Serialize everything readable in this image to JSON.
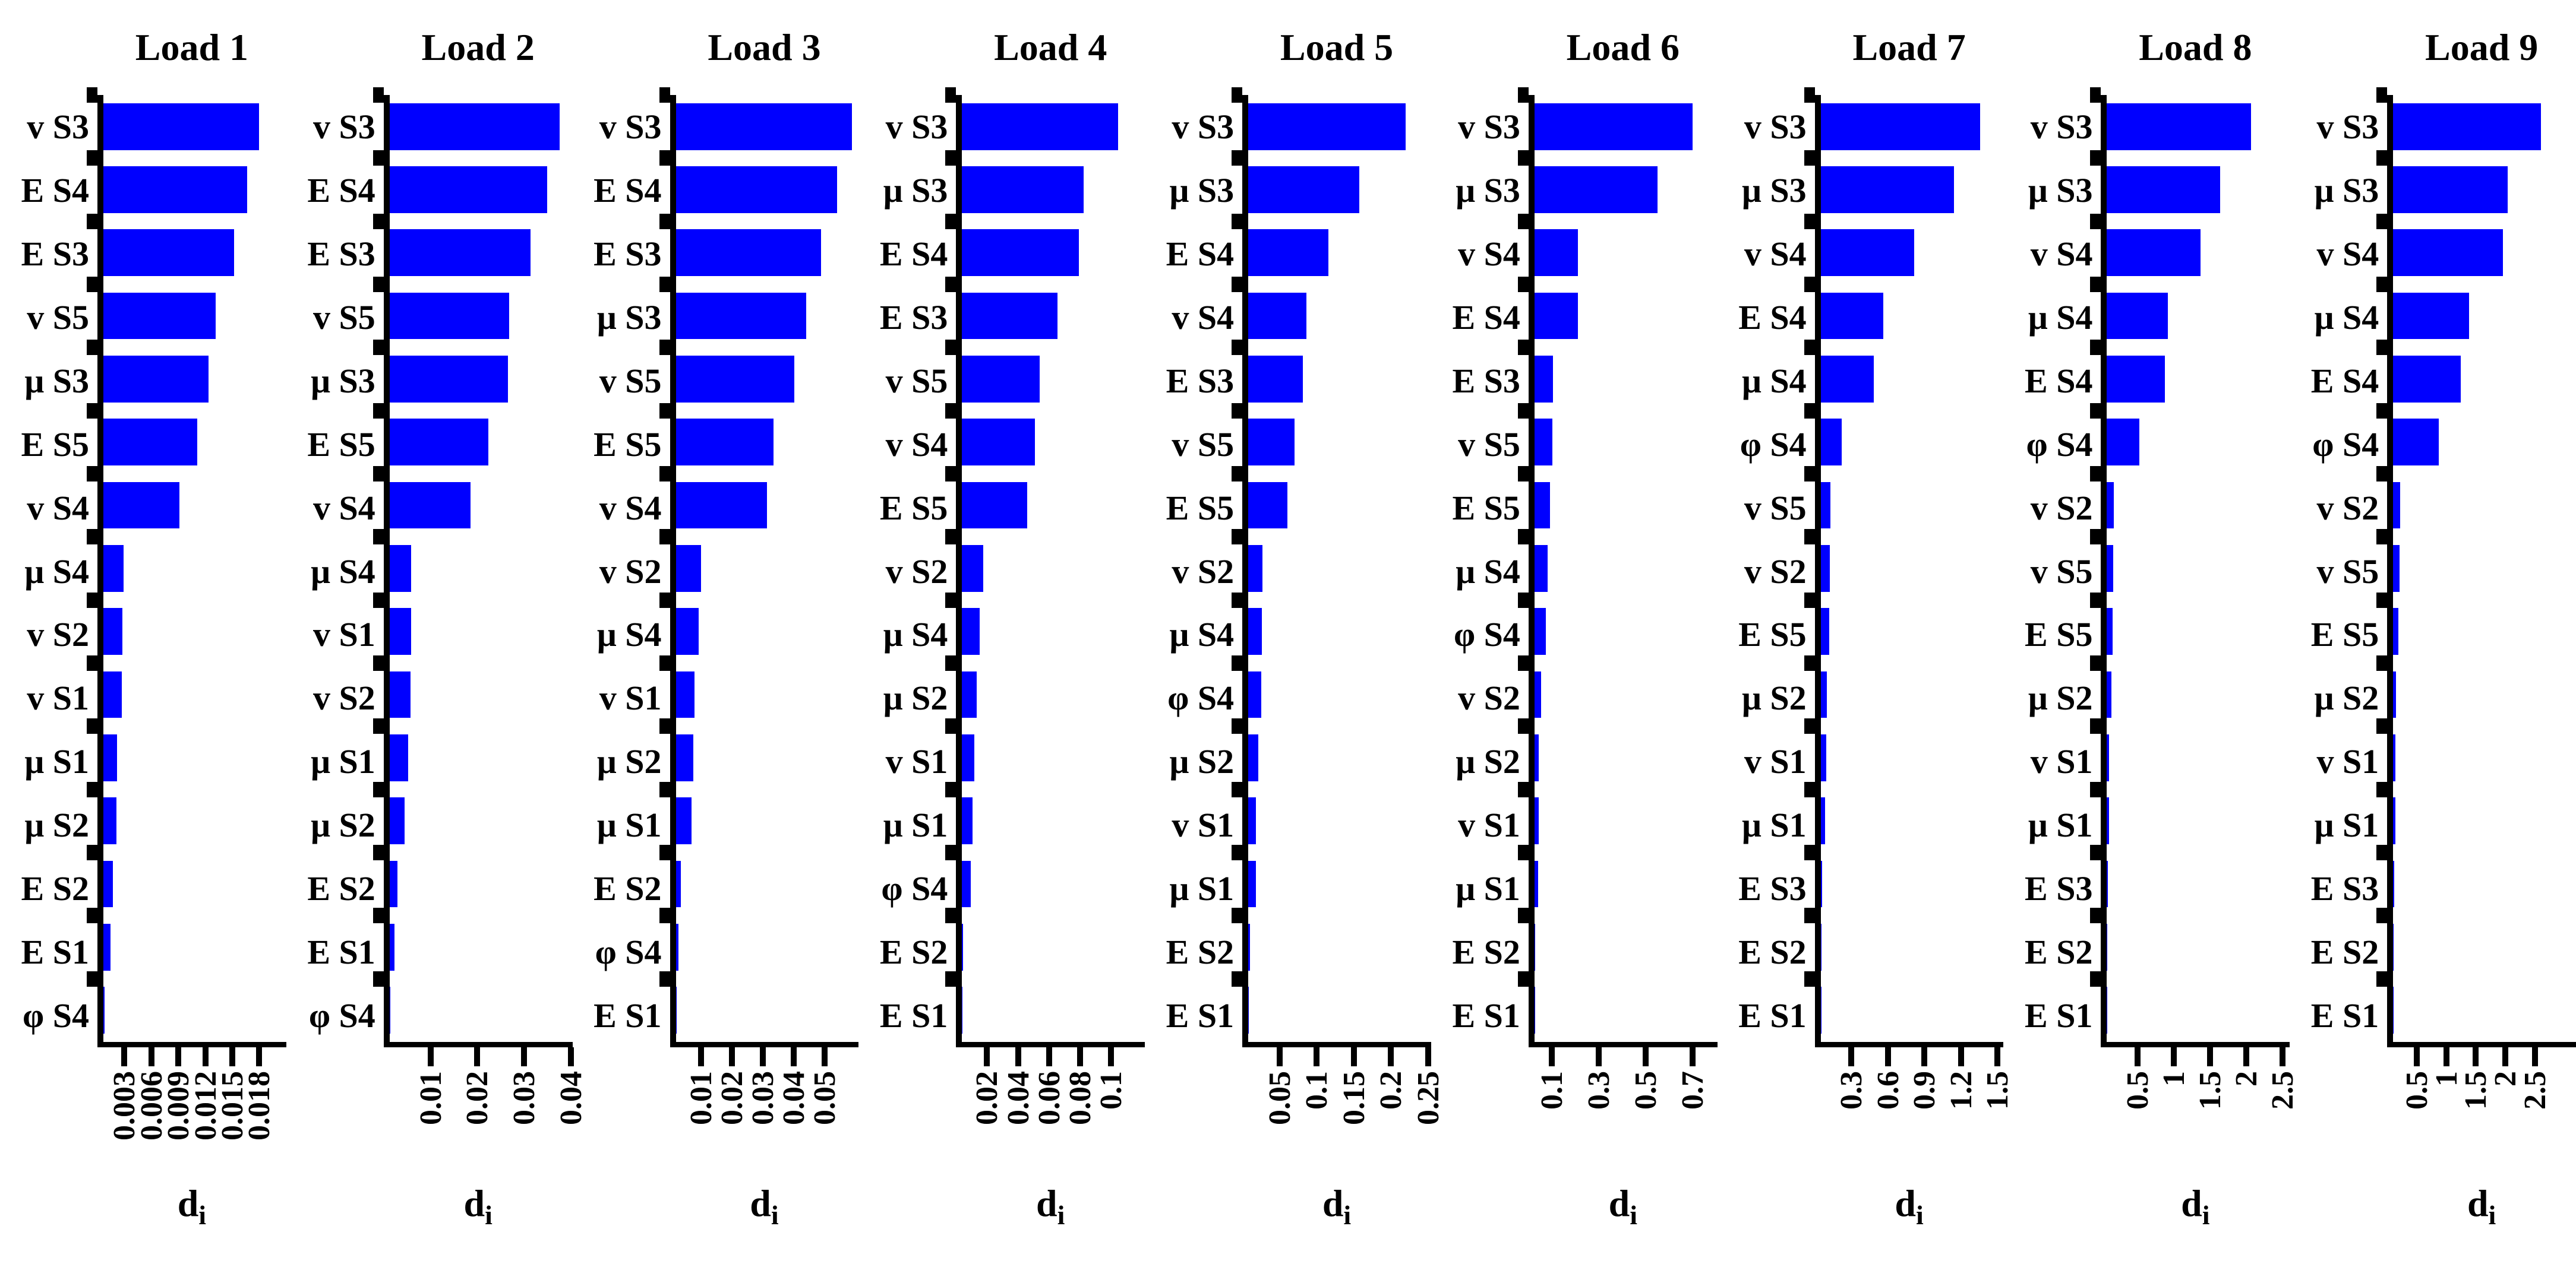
{
  "figure": {
    "bar_color": "#0000ff",
    "xlabel_base": "d",
    "xlabel_sub": "i"
  },
  "chart_data": [
    {
      "type": "bar",
      "orientation": "horizontal",
      "title": "Load 1",
      "xlabel": "d_i",
      "grid": false,
      "xlim": [
        0,
        0.021
      ],
      "xticks": [
        0.003,
        0.006,
        0.009,
        0.012,
        0.015,
        0.018
      ],
      "xtick_labels": [
        "0.003",
        "0.006",
        "0.009",
        "0.012",
        "0.015",
        "0.018"
      ],
      "categories": [
        "v S3",
        "E S4",
        "E S3",
        "v S5",
        "μ S3",
        "E S5",
        "v S4",
        "μ S4",
        "v S2",
        "v S1",
        "μ S1",
        "μ S2",
        "E S2",
        "E S1",
        "φ S4"
      ],
      "values": [
        0.0179,
        0.0165,
        0.015,
        0.0129,
        0.0121,
        0.0108,
        0.0087,
        0.0023,
        0.0022,
        0.0021,
        0.0016,
        0.0015,
        0.0011,
        0.0008,
        0.00015
      ]
    },
    {
      "type": "bar",
      "orientation": "horizontal",
      "title": "Load 2",
      "xlabel": "d_i",
      "grid": false,
      "xlim": [
        0,
        0.0403
      ],
      "xticks": [
        0.01,
        0.02,
        0.03,
        0.04
      ],
      "xtick_labels": [
        "0.01",
        "0.02",
        "0.03",
        "0.04"
      ],
      "categories": [
        "v S3",
        "E S4",
        "E S3",
        "v S5",
        "μ S3",
        "E S5",
        "v S4",
        "μ S4",
        "v S1",
        "v S2",
        "μ S1",
        "μ S2",
        "E S2",
        "E S1",
        "φ S4"
      ],
      "values": [
        0.0375,
        0.0347,
        0.0311,
        0.0264,
        0.0261,
        0.0218,
        0.0179,
        0.0047,
        0.0047,
        0.0046,
        0.0041,
        0.0033,
        0.0017,
        0.0011,
        0.0002
      ]
    },
    {
      "type": "bar",
      "orientation": "horizontal",
      "title": "Load 3",
      "xlabel": "d_i",
      "grid": false,
      "xlim": [
        0,
        0.061
      ],
      "xticks": [
        0.01,
        0.02,
        0.03,
        0.04,
        0.05
      ],
      "xtick_labels": [
        "0.01",
        "0.02",
        "0.03",
        "0.04",
        "0.05"
      ],
      "categories": [
        "v S3",
        "E S4",
        "E S3",
        "μ S3",
        "v S5",
        "E S5",
        "v S4",
        "v S2",
        "μ S4",
        "v S1",
        "μ S2",
        "μ S1",
        "E S2",
        "φ S4",
        "E S1"
      ],
      "values": [
        0.0588,
        0.0538,
        0.0484,
        0.0434,
        0.0396,
        0.0326,
        0.0304,
        0.0084,
        0.0076,
        0.0062,
        0.0058,
        0.0052,
        0.0016,
        0.0008,
        0.0003
      ]
    },
    {
      "type": "bar",
      "orientation": "horizontal",
      "title": "Load 4",
      "xlabel": "d_i",
      "grid": false,
      "xlim": [
        0,
        0.122
      ],
      "xticks": [
        0.02,
        0.04,
        0.06,
        0.08,
        0.1
      ],
      "xtick_labels": [
        "0.02",
        "0.04",
        "0.06",
        "0.08",
        "0.1"
      ],
      "categories": [
        "v S3",
        "μ S3",
        "E S4",
        "E S3",
        "v S5",
        "v S4",
        "E S5",
        "v S2",
        "μ S4",
        "μ S2",
        "v S1",
        "μ S1",
        "φ S4",
        "E S2",
        "E S1"
      ],
      "values": [
        0.104,
        0.081,
        0.078,
        0.0635,
        0.0517,
        0.0485,
        0.0434,
        0.0142,
        0.0118,
        0.0099,
        0.0083,
        0.0071,
        0.0059,
        0.0005,
        0.0004
      ]
    },
    {
      "type": "bar",
      "orientation": "horizontal",
      "title": "Load 5",
      "xlabel": "d_i",
      "grid": false,
      "xlim": [
        0,
        0.254
      ],
      "xticks": [
        0.05,
        0.1,
        0.15,
        0.2,
        0.25
      ],
      "xtick_labels": [
        "0.05",
        "0.1",
        "0.15",
        "0.2",
        "0.25"
      ],
      "categories": [
        "v S3",
        "μ S3",
        "E S4",
        "v S4",
        "E S3",
        "v S5",
        "E S5",
        "v S2",
        "μ S4",
        "φ S4",
        "μ S2",
        "v S1",
        "μ S1",
        "E S2",
        "E S1"
      ],
      "values": [
        0.219,
        0.154,
        0.111,
        0.081,
        0.076,
        0.064,
        0.054,
        0.02,
        0.019,
        0.018,
        0.014,
        0.011,
        0.011,
        0.002,
        0.001
      ]
    },
    {
      "type": "bar",
      "orientation": "horizontal",
      "title": "Load 6",
      "xlabel": "d_i",
      "grid": false,
      "xlim": [
        0,
        0.805
      ],
      "xticks": [
        0.1,
        0.3,
        0.5,
        0.7
      ],
      "xtick_labels": [
        "0.1",
        "0.3",
        "0.5",
        "0.7"
      ],
      "categories": [
        "v S3",
        "μ S3",
        "v S4",
        "E S4",
        "E S3",
        "v S5",
        "E S5",
        "μ S4",
        "φ S4",
        "v S2",
        "μ S2",
        "v S1",
        "μ S1",
        "E S2",
        "E S1"
      ],
      "values": [
        0.697,
        0.541,
        0.192,
        0.19,
        0.082,
        0.079,
        0.069,
        0.059,
        0.049,
        0.028,
        0.018,
        0.018,
        0.015,
        0.004,
        0.002
      ]
    },
    {
      "type": "bar",
      "orientation": "horizontal",
      "title": "Load 7",
      "xlabel": "d_i",
      "grid": false,
      "xlim": [
        0,
        1.55
      ],
      "xticks": [
        0.3,
        0.6,
        0.9,
        1.2,
        1.5
      ],
      "xtick_labels": [
        "0.3",
        "0.6",
        "0.9",
        "1.2",
        "1.5"
      ],
      "categories": [
        "v S3",
        "μ S3",
        "v S4",
        "E S4",
        "μ S4",
        "φ S4",
        "v S5",
        "v S2",
        "E S5",
        "μ S2",
        "v S1",
        "μ S1",
        "E S3",
        "E S2",
        "E S1"
      ],
      "values": [
        1.35,
        1.13,
        0.79,
        0.53,
        0.45,
        0.18,
        0.084,
        0.079,
        0.074,
        0.054,
        0.049,
        0.039,
        0.01,
        0.005,
        0.004
      ]
    },
    {
      "type": "bar",
      "orientation": "horizontal",
      "title": "Load 8",
      "xlabel": "d_i",
      "grid": false,
      "xlim": [
        0,
        2.6
      ],
      "xticks": [
        0.5,
        1,
        1.5,
        2,
        2.5
      ],
      "xtick_labels": [
        "0.5",
        "1",
        "1.5",
        "2",
        "2.5"
      ],
      "categories": [
        "v S3",
        "μ S3",
        "v S4",
        "μ S4",
        "E S4",
        "φ S4",
        "v S2",
        "v S5",
        "E S5",
        "μ S2",
        "v S1",
        "μ S1",
        "E S3",
        "E S2",
        "E S1"
      ],
      "values": [
        2.05,
        1.61,
        1.33,
        0.87,
        0.82,
        0.46,
        0.1,
        0.09,
        0.08,
        0.066,
        0.033,
        0.027,
        0.015,
        0.008,
        0.006
      ]
    },
    {
      "type": "bar",
      "orientation": "horizontal",
      "title": "Load 9",
      "xlabel": "d_i",
      "grid": false,
      "xlim": [
        0,
        3.2
      ],
      "xticks": [
        0.5,
        1,
        1.5,
        2,
        2.5
      ],
      "xtick_labels": [
        "0.5",
        "1",
        "1.5",
        "2",
        "2.5"
      ],
      "categories": [
        "v S3",
        "μ S3",
        "v S4",
        "μ S4",
        "E S4",
        "φ S4",
        "v S2",
        "v S5",
        "E S5",
        "μ S2",
        "v S1",
        "μ S1",
        "E S3",
        "E S2",
        "E S1"
      ],
      "values": [
        2.59,
        2.0,
        1.92,
        1.33,
        1.18,
        0.8,
        0.12,
        0.11,
        0.09,
        0.05,
        0.04,
        0.04,
        0.02,
        0.01,
        0.008
      ]
    }
  ]
}
